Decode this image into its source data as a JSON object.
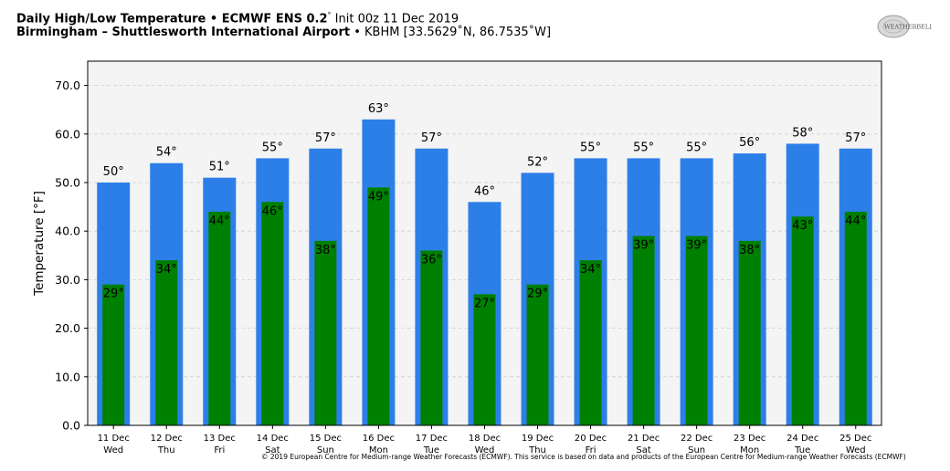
{
  "header": {
    "title_bold": "Daily High/Low Temperature • ECMWF ENS 0.2",
    "title_deg": "°",
    "title_rest": " Init 00z 11 Dec 2019",
    "location_bold": "Birmingham – Shuttlesworth International Airport",
    "location_rest": " • KBHM [33.5629˚N, 86.7535˚W]"
  },
  "logo": {
    "text": "WEATHERBELL",
    "icon": "weatherbell-logo-icon"
  },
  "footer": {
    "text": "© 2019 European Centre for Medium-range Weather Forecasts (ECMWF). This service is based on data and products of the European Centre for Medium-range Weather Forecasts (ECMWF)"
  },
  "chart_data": {
    "type": "bar",
    "title": "",
    "xlabel": "",
    "ylabel": "Temperature [°F]",
    "ylim": [
      0,
      75
    ],
    "yticks": [
      0,
      10,
      20,
      30,
      40,
      50,
      60,
      70
    ],
    "ytick_labels": [
      "0.0",
      "10.0",
      "20.0",
      "30.0",
      "40.0",
      "50.0",
      "60.0",
      "70.0"
    ],
    "grid": true,
    "categories": [
      "11 Dec",
      "12 Dec",
      "13 Dec",
      "14 Dec",
      "15 Dec",
      "16 Dec",
      "17 Dec",
      "18 Dec",
      "19 Dec",
      "20 Dec",
      "21 Dec",
      "22 Dec",
      "23 Dec",
      "24 Dec",
      "25 Dec"
    ],
    "weekdays": [
      "Wed",
      "Thu",
      "Fri",
      "Sat",
      "Sun",
      "Mon",
      "Tue",
      "Wed",
      "Thu",
      "Fri",
      "Sat",
      "Sun",
      "Mon",
      "Tue",
      "Wed"
    ],
    "series": [
      {
        "values": [
          50,
          54,
          51,
          55,
          57,
          63,
          57,
          46,
          52,
          55,
          55,
          55,
          56,
          58,
          57
        ],
        "color": "#2d7fe8"
      },
      {
        "values": [
          29,
          34,
          44,
          46,
          38,
          49,
          36,
          27,
          29,
          34,
          39,
          39,
          38,
          43,
          44
        ],
        "color": "#008000"
      }
    ],
    "high_labels": [
      "50°",
      "54°",
      "51°",
      "55°",
      "57°",
      "63°",
      "57°",
      "46°",
      "52°",
      "55°",
      "55°",
      "55°",
      "56°",
      "58°",
      "57°"
    ],
    "low_labels": [
      "29°",
      "34°",
      "44°",
      "46°",
      "38°",
      "49°",
      "36°",
      "27°",
      "29°",
      "34°",
      "39°",
      "39°",
      "38°",
      "43°",
      "44°"
    ],
    "plot_background": "#f4f4f4"
  }
}
